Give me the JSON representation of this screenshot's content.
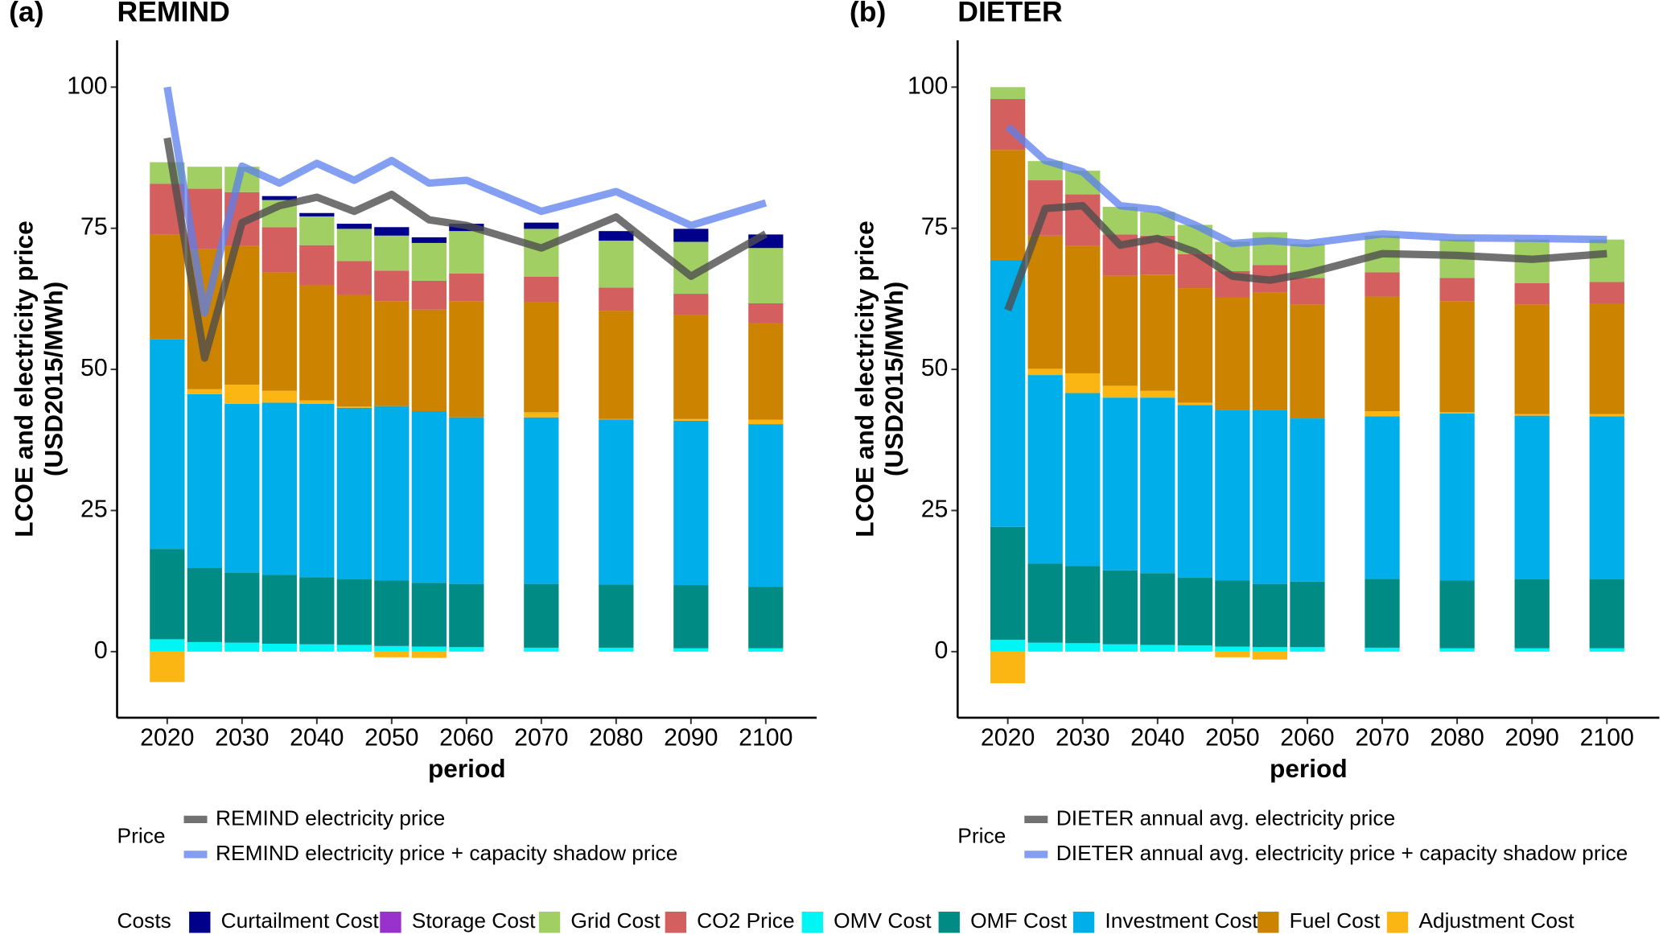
{
  "chart_data": [
    {
      "type": "bar",
      "stacked": true,
      "panel_label": "(a)",
      "title": "REMIND",
      "ylabel": [
        "LCOE and electricity price",
        "(USD2015/MWh)"
      ],
      "xlabel": "period",
      "x": [
        2020,
        2025,
        2030,
        2035,
        2040,
        2045,
        2050,
        2055,
        2060,
        2070,
        2080,
        2090,
        2100
      ],
      "xlim": [
        2013.3,
        2106.8
      ],
      "xticks": [
        2020,
        2030,
        2040,
        2050,
        2060,
        2070,
        2080,
        2090,
        2100
      ],
      "ylim": [
        -11.7,
        108.3
      ],
      "yticks": [
        0,
        25,
        50,
        75,
        100
      ],
      "costs_legend_title": "Costs",
      "price_legend_title": "Price",
      "series": [
        {
          "name": "Curtailment Cost",
          "color": "#00008b",
          "values": [
            0,
            0,
            0,
            0.7,
            0.6,
            0.9,
            1.5,
            1.0,
            1.3,
            1.1,
            1.7,
            2.3,
            2.4
          ]
        },
        {
          "name": "Storage Cost",
          "color": "#9932cc",
          "values": [
            0,
            0,
            0,
            0,
            0,
            0,
            0,
            0,
            0,
            0,
            0,
            0,
            0
          ]
        },
        {
          "name": "Grid Cost",
          "color": "#a1cf63",
          "values": [
            3.8,
            3.9,
            4.5,
            4.8,
            5.1,
            5.7,
            6.2,
            6.7,
            7.5,
            8.5,
            8.3,
            9.2,
            9.8
          ]
        },
        {
          "name": "CO2 Price",
          "color": "#d35f5f",
          "values": [
            9,
            10.7,
            9.5,
            8,
            7.1,
            6,
            5.4,
            5.1,
            4.9,
            4.5,
            4.1,
            3.7,
            3.5
          ]
        },
        {
          "name": "OMV Cost",
          "color": "#00f5f5",
          "values": [
            2.2,
            1.7,
            1.6,
            1.4,
            1.3,
            1.2,
            1.0,
            0.9,
            0.8,
            0.7,
            0.7,
            0.6,
            0.6
          ]
        },
        {
          "name": "OMF Cost",
          "color": "#008b84",
          "values": [
            16,
            13.1,
            12.4,
            12.2,
            11.9,
            11.6,
            11.6,
            11.3,
            11.2,
            11.3,
            11.2,
            11.2,
            10.9
          ]
        },
        {
          "name": "Investment Cost",
          "color": "#00aeea",
          "values": [
            37.1,
            30.8,
            29.9,
            30.5,
            30.7,
            30.4,
            30.9,
            30.4,
            29.5,
            29.5,
            29.2,
            29.1,
            28.8
          ]
        },
        {
          "name": "Fuel Cost",
          "color": "#cc8400",
          "values": [
            18.6,
            24.8,
            24.6,
            21,
            20.4,
            19.8,
            18.6,
            18,
            20.6,
            19.5,
            19.2,
            18.5,
            17.1
          ]
        },
        {
          "name": "Adjustment Cost",
          "color": "#fbb614",
          "values": [
            -5.4,
            0.9,
            3.4,
            2.1,
            0.6,
            0.2,
            -1.0,
            -1.1,
            0,
            0.9,
            0.1,
            0.3,
            0.8
          ]
        }
      ],
      "lines": [
        {
          "name": "REMIND electricity price",
          "color": "#4d4d4d",
          "values": [
            91,
            52,
            76,
            79,
            80.5,
            78,
            81,
            76.5,
            75.5,
            71.5,
            77,
            66.5,
            74
          ]
        },
        {
          "name": "REMIND electricity price + capacity shadow price",
          "color": "#5b7fee",
          "values": [
            100,
            60,
            86,
            83,
            86.5,
            83.5,
            87,
            83,
            83.5,
            78,
            81.5,
            75.5,
            79.5
          ]
        }
      ]
    },
    {
      "type": "bar",
      "stacked": true,
      "panel_label": "(b)",
      "title": "DIETER",
      "ylabel": [
        "LCOE and electricity price",
        "(USD2015/MWh)"
      ],
      "xlabel": "period",
      "x": [
        2020,
        2025,
        2030,
        2035,
        2040,
        2045,
        2050,
        2055,
        2060,
        2070,
        2080,
        2090,
        2100
      ],
      "xlim": [
        2013.3,
        2107
      ],
      "xticks": [
        2020,
        2030,
        2040,
        2050,
        2060,
        2070,
        2080,
        2090,
        2100
      ],
      "ylim": [
        -11.7,
        108.3
      ],
      "yticks": [
        0,
        25,
        50,
        75,
        100
      ],
      "price_legend_title": "Price",
      "series": [
        {
          "name": "Curtailment Cost",
          "color": "#00008b",
          "values": [
            0,
            0,
            0,
            0,
            0,
            0,
            0,
            0,
            0,
            0,
            0,
            0,
            0
          ]
        },
        {
          "name": "Storage Cost",
          "color": "#9932cc",
          "values": [
            0,
            0,
            0,
            0,
            0,
            0,
            0,
            0,
            0,
            0,
            0,
            0,
            0
          ]
        },
        {
          "name": "Grid Cost",
          "color": "#a1cf63",
          "values": [
            2.1,
            3.4,
            4.2,
            4.9,
            4.2,
            5.2,
            5.2,
            5.8,
            6,
            6.5,
            6.8,
            7.7,
            7.5
          ]
        },
        {
          "name": "CO2 Price",
          "color": "#d35f5f",
          "values": [
            9,
            9.8,
            9.1,
            7.3,
            6.9,
            6,
            4.7,
            4.9,
            4.7,
            4.3,
            4.1,
            3.8,
            3.8
          ]
        },
        {
          "name": "OMV Cost",
          "color": "#00f5f5",
          "values": [
            2.1,
            1.6,
            1.5,
            1.3,
            1.2,
            1.1,
            0.9,
            0.8,
            0.8,
            0.7,
            0.6,
            0.6,
            0.6
          ]
        },
        {
          "name": "OMF Cost",
          "color": "#008b84",
          "values": [
            20,
            14,
            13.7,
            13.1,
            12.7,
            12,
            11.7,
            11.2,
            11.6,
            12.2,
            12,
            12.2,
            12.2
          ]
        },
        {
          "name": "Investment Cost",
          "color": "#00aeea",
          "values": [
            47.3,
            33.4,
            30.6,
            30.6,
            31.1,
            30.6,
            30.2,
            30.8,
            28.9,
            28.8,
            29.6,
            29,
            28.9
          ]
        },
        {
          "name": "Fuel Cost",
          "color": "#cc8400",
          "values": [
            19.5,
            23.6,
            22.6,
            19.5,
            20.6,
            20.3,
            19.9,
            20.8,
            20.2,
            20.3,
            19.7,
            19.4,
            19.6
          ]
        },
        {
          "name": "Adjustment Cost",
          "color": "#fbb614",
          "values": [
            -5.6,
            1.1,
            3.5,
            2.1,
            1.2,
            0.4,
            -1.0,
            -1.4,
            0,
            0.9,
            0.2,
            0.3,
            0.4
          ]
        }
      ],
      "lines": [
        {
          "name": "DIETER annual avg. electricity price",
          "color": "#4d4d4d",
          "values": [
            60.5,
            78.5,
            79,
            72,
            73.2,
            70.8,
            66.5,
            65.8,
            67,
            70.5,
            70.2,
            69.5,
            70.5
          ]
        },
        {
          "name": "DIETER annual avg. electricity price + capacity shadow price",
          "color": "#5b7fee",
          "values": [
            93,
            87,
            85,
            79,
            78.3,
            75.6,
            72.3,
            72.8,
            72.3,
            74,
            73.3,
            73.2,
            73
          ]
        }
      ]
    }
  ]
}
